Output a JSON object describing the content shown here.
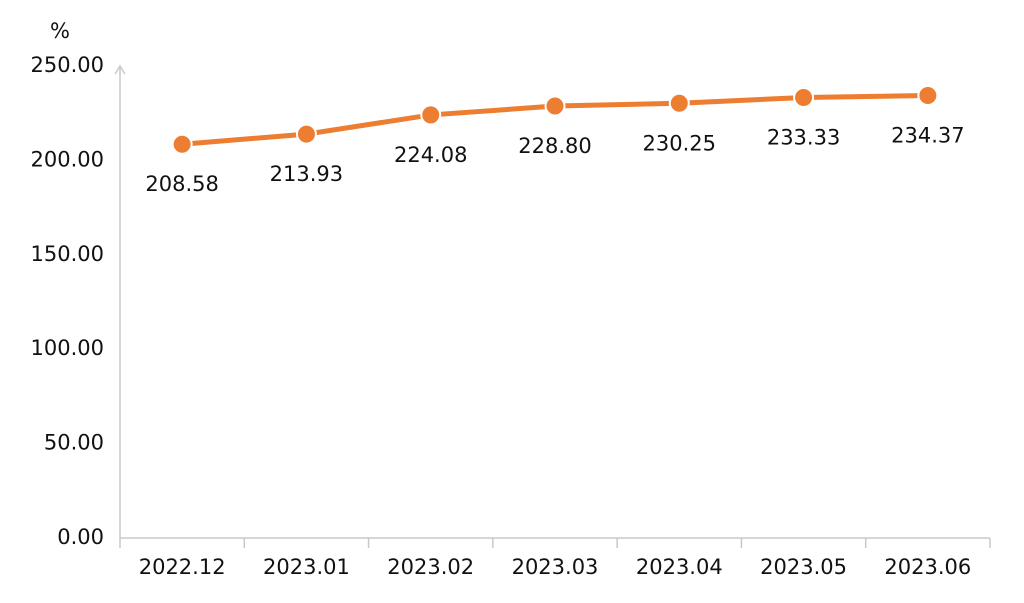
{
  "chart_data": {
    "type": "line",
    "y_label": "%",
    "categories": [
      "2022.12",
      "2023.01",
      "2023.02",
      "2023.03",
      "2023.04",
      "2023.05",
      "2023.06"
    ],
    "values": [
      208.58,
      213.93,
      224.08,
      228.8,
      230.25,
      233.33,
      234.37
    ],
    "value_labels": [
      "208.58",
      "213.93",
      "224.08",
      "228.80",
      "230.25",
      "233.33",
      "234.37"
    ],
    "color": "#ed7d31",
    "ylim": [
      0,
      250
    ],
    "yticks": [
      {
        "value": 0,
        "label": "0.00"
      },
      {
        "value": 50,
        "label": "50.00"
      },
      {
        "value": 100,
        "label": "100.00"
      },
      {
        "value": 150,
        "label": "150.00"
      },
      {
        "value": 200,
        "label": "200.00"
      },
      {
        "value": 250,
        "label": "250.00"
      }
    ],
    "grid": false
  }
}
